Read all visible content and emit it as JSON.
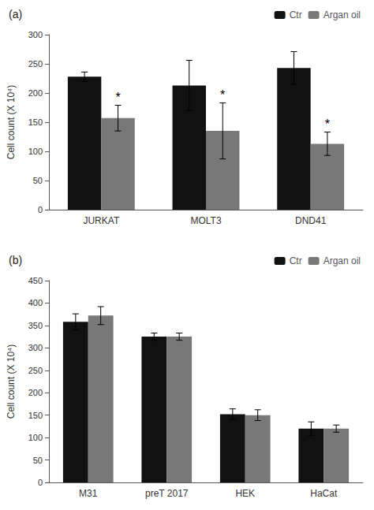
{
  "chart_data": [
    {
      "type": "bar",
      "title": "(a)",
      "categories": [
        "JURKAT",
        "MOLT3",
        "DND41"
      ],
      "series": [
        {
          "name": "Ctr",
          "color": "#111111",
          "values": [
            228,
            213,
            243
          ],
          "errors": [
            8,
            43,
            28
          ]
        },
        {
          "name": "Argan oil",
          "color": "#787878",
          "values": [
            157,
            135,
            113
          ],
          "errors": [
            22,
            48,
            20
          ]
        }
      ],
      "annotations": [
        {
          "category": "JURKAT",
          "series": "Argan oil",
          "text": "*"
        },
        {
          "category": "MOLT3",
          "series": "Argan oil",
          "text": "*"
        },
        {
          "category": "DND41",
          "series": "Argan oil",
          "text": "*"
        }
      ],
      "ylabel": "Cell count (X 10⁴)",
      "ylim": [
        0,
        300
      ],
      "yticks": [
        0,
        50,
        100,
        150,
        200,
        250,
        300
      ],
      "legend": "upper right",
      "grid": false
    },
    {
      "type": "bar",
      "title": "(b)",
      "categories": [
        "M31",
        "preT 2017",
        "HEK",
        "HaCat"
      ],
      "series": [
        {
          "name": "Ctr",
          "color": "#111111",
          "values": [
            358,
            325,
            152,
            120
          ],
          "errors": [
            18,
            8,
            12,
            15
          ]
        },
        {
          "name": "Argan oil",
          "color": "#787878",
          "values": [
            372,
            325,
            150,
            120
          ],
          "errors": [
            20,
            8,
            12,
            8
          ]
        }
      ],
      "ylabel": "Cell count (X 10⁴)",
      "ylim": [
        0,
        450
      ],
      "yticks": [
        0,
        50,
        100,
        150,
        200,
        250,
        300,
        350,
        400,
        450
      ],
      "legend": "upper right",
      "grid": false
    }
  ]
}
